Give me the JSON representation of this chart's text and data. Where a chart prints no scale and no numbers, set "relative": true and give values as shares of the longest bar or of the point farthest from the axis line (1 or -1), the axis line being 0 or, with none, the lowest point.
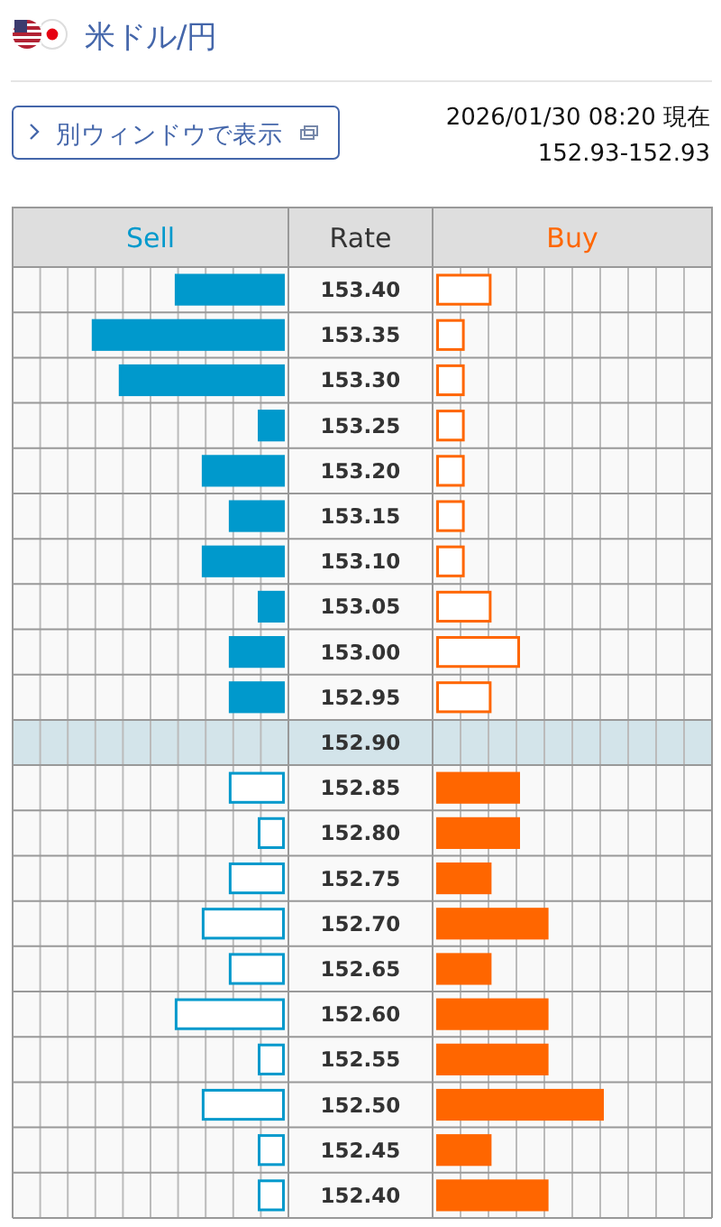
{
  "chart_data": [
    {
      "type": "bar",
      "orientation": "horizontal",
      "relative": true,
      "title": "米ドル/円",
      "ylabel": "Rate",
      "annotations": [
        "別ウィンドウで表示",
        "2026/01/30 08:20 現在",
        "152.93-152.93"
      ],
      "categories": [
        "153.40",
        "153.35",
        "153.30",
        "153.25",
        "153.20",
        "153.15",
        "153.10",
        "153.05",
        "153.00",
        "152.95",
        "152.90",
        "152.85",
        "152.80",
        "152.75",
        "152.70",
        "152.65",
        "152.60",
        "152.55",
        "152.50",
        "152.45",
        "152.40"
      ],
      "series": [
        {
          "name": "Sell",
          "color": "#0099cc",
          "colors": [
            "#0099cc",
            "#0099cc",
            "#0099cc",
            "#0099cc",
            "#0099cc",
            "#0099cc",
            "#0099cc",
            "#0099cc",
            "#0099cc",
            "#0099cc",
            null,
            "#ffffff",
            "#ffffff",
            "#ffffff",
            "#ffffff",
            "#ffffff",
            "#ffffff",
            "#ffffff",
            "#ffffff",
            "#ffffff",
            "#ffffff"
          ],
          "values": [
            -0.57,
            -1,
            -0.86,
            -0.14,
            -0.43,
            -0.29,
            -0.43,
            -0.14,
            -0.29,
            -0.29,
            null,
            -0.29,
            -0.14,
            -0.29,
            -0.43,
            -0.29,
            -0.57,
            -0.14,
            -0.43,
            -0.14,
            -0.14
          ]
        }
      ],
      "bands": [
        {
          "axis": "y",
          "from": "152.90",
          "to": "152.90",
          "color": "#d3e4ea"
        }
      ]
    },
    {
      "type": "bar",
      "orientation": "horizontal",
      "relative": true,
      "tick_labels": false,
      "categories": [
        "153.40",
        "153.35",
        "153.30",
        "153.25",
        "153.20",
        "153.15",
        "153.10",
        "153.05",
        "153.00",
        "152.95",
        "152.90",
        "152.85",
        "152.80",
        "152.75",
        "152.70",
        "152.65",
        "152.60",
        "152.55",
        "152.50",
        "152.45",
        "152.40"
      ],
      "series": [
        {
          "name": "Buy",
          "color": "#ff6600",
          "colors": [
            "#ffffff",
            "#ffffff",
            "#ffffff",
            "#ffffff",
            "#ffffff",
            "#ffffff",
            "#ffffff",
            "#ffffff",
            "#ffffff",
            "#ffffff",
            null,
            "#ff6600",
            "#ff6600",
            "#ff6600",
            "#ff6600",
            "#ff6600",
            "#ff6600",
            "#ff6600",
            "#ff6600",
            "#ff6600",
            "#ff6600"
          ],
          "values": [
            0.33,
            0.17,
            0.17,
            0.17,
            0.17,
            0.17,
            0.17,
            0.33,
            0.5,
            0.33,
            null,
            0.5,
            0.5,
            0.33,
            0.67,
            0.33,
            0.67,
            0.67,
            1,
            0.33,
            0.67
          ]
        }
      ],
      "bands": [
        {
          "axis": "y",
          "from": "152.90",
          "to": "152.90",
          "color": "#d3e4ea"
        }
      ]
    }
  ]
}
